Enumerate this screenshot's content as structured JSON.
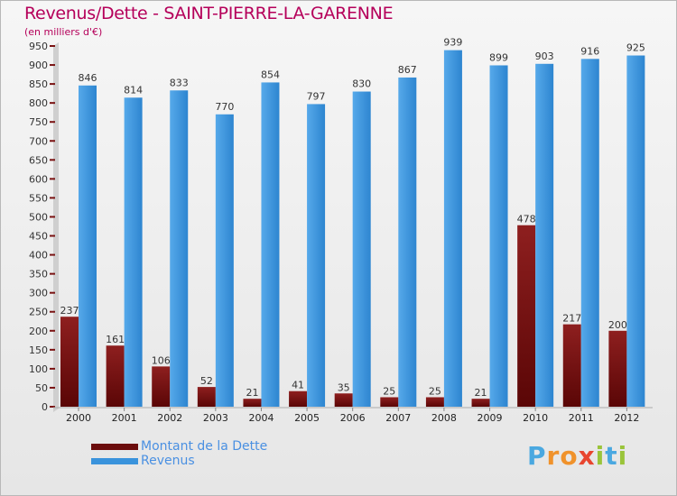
{
  "header": {
    "title": "Revenus/Dette - SAINT-PIERRE-LA-GARENNE",
    "subtitle": "(en milliers d'€)"
  },
  "chart_data": {
    "type": "bar",
    "title": "Revenus/Dette - SAINT-PIERRE-LA-GARENNE",
    "ylabel": "(en milliers d'€)",
    "xlabel": "",
    "categories": [
      "2000",
      "2001",
      "2002",
      "2003",
      "2004",
      "2005",
      "2006",
      "2007",
      "2008",
      "2009",
      "2010",
      "2011",
      "2012"
    ],
    "series": [
      {
        "name": "Montant de la Dette",
        "color": "#7a1212",
        "values": [
          237,
          161,
          106,
          52,
          21,
          41,
          35,
          25,
          25,
          21,
          478,
          217,
          200
        ]
      },
      {
        "name": "Revenus",
        "color": "#3a93dc",
        "values": [
          846,
          814,
          833,
          770,
          854,
          797,
          830,
          867,
          939,
          899,
          903,
          916,
          925
        ]
      }
    ],
    "ylim": [
      0,
      950
    ],
    "ytick_step": 50,
    "grid": false,
    "legend_position": "bottom-left"
  },
  "legend": {
    "items": [
      {
        "label": "Montant de la Dette",
        "color": "#6b0c0c"
      },
      {
        "label": "Revenus",
        "color": "#3a93dc"
      }
    ]
  },
  "logo": {
    "text": "Proxiti"
  }
}
